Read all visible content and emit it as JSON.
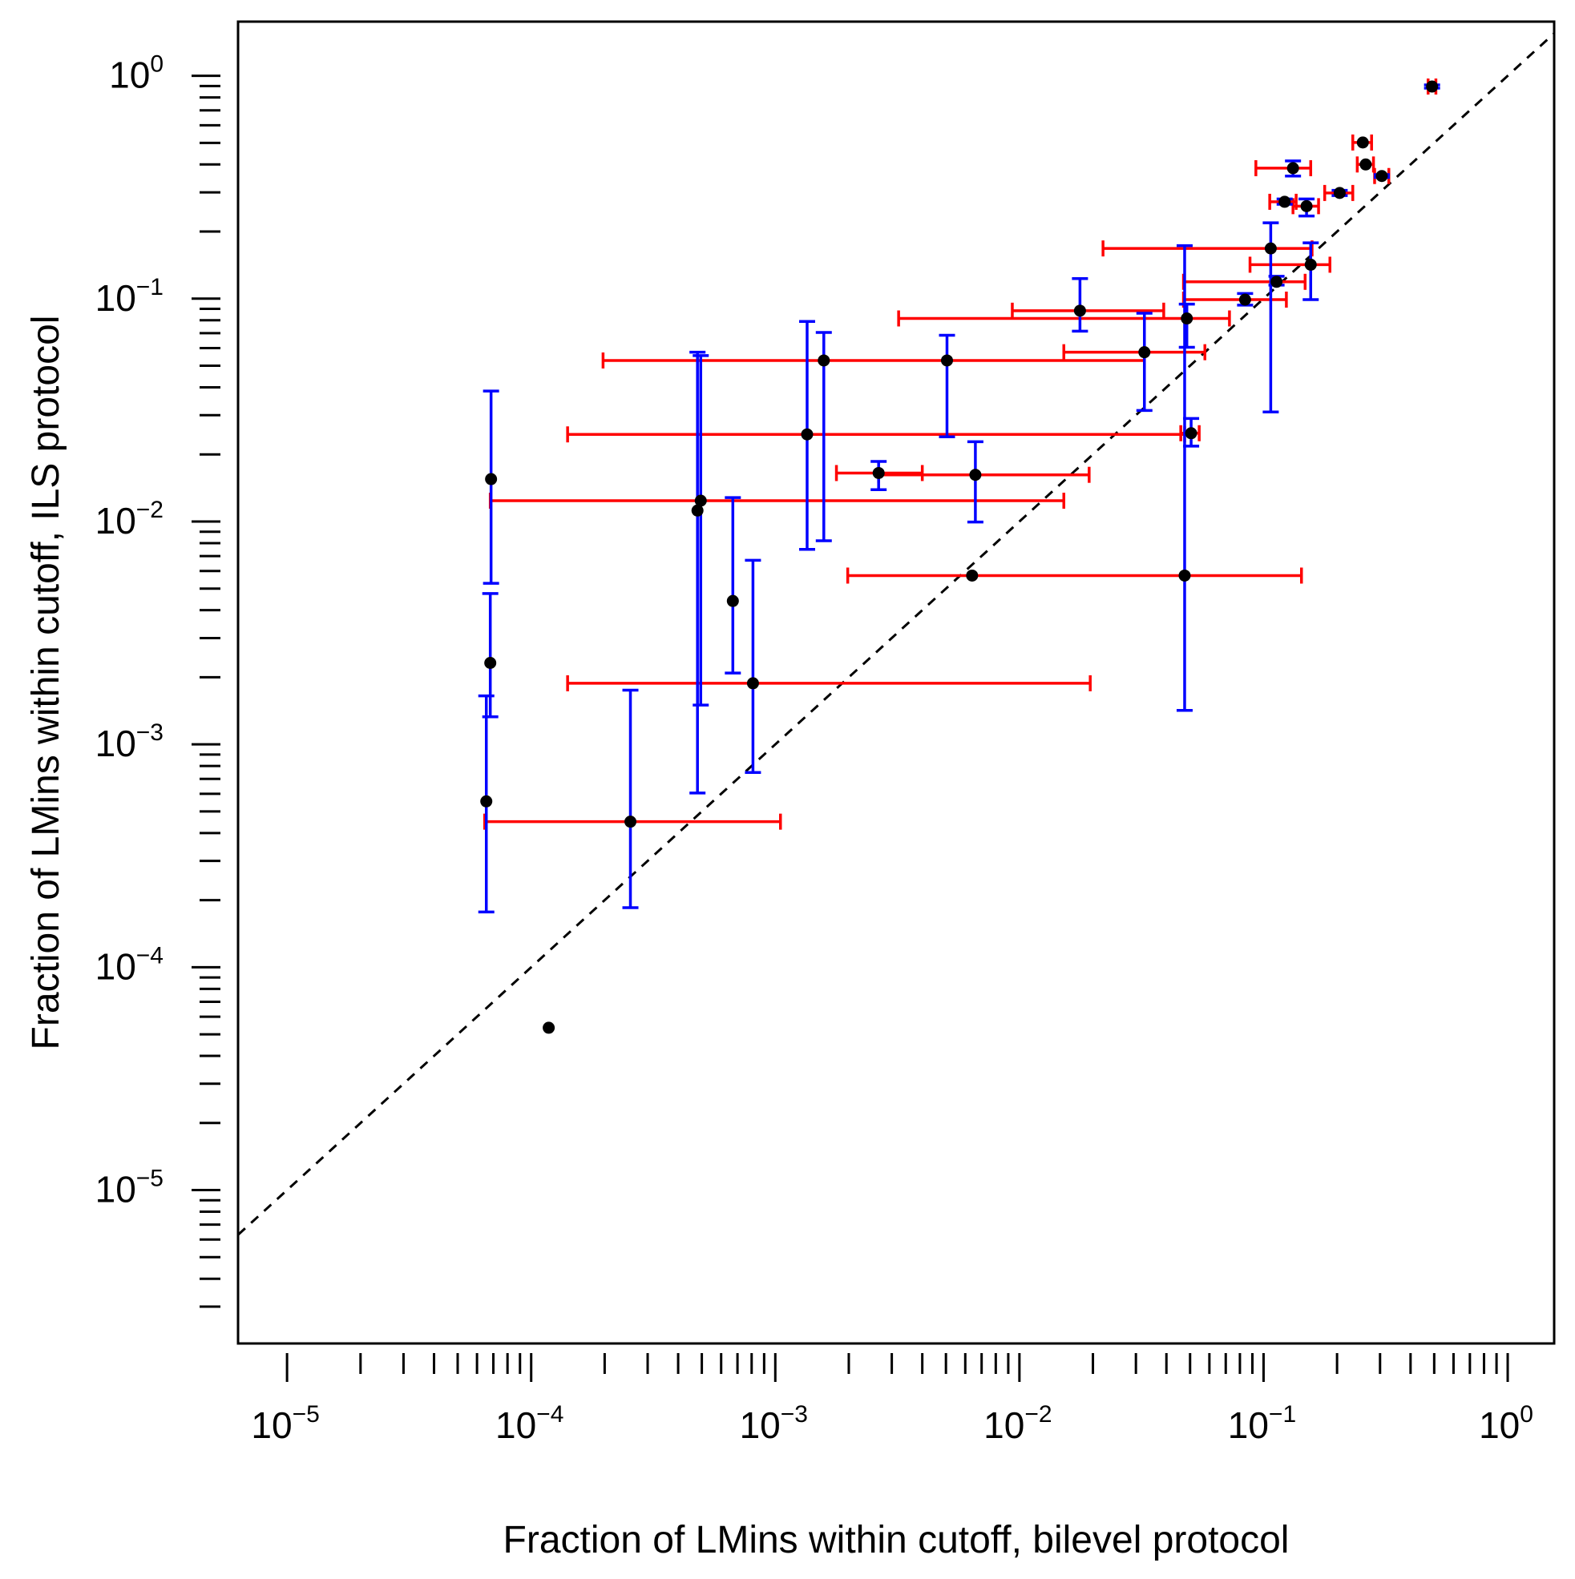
{
  "chart_data": {
    "type": "scatter",
    "title": "",
    "xlabel": "Fraction of LMins within cutoff, bilevel protocol",
    "ylabel": "Fraction of LMins within cutoff, ILS protocol",
    "x_scale": "log",
    "y_scale": "log",
    "xlim": [
      6.3e-06,
      1.55
    ],
    "ylim": [
      2.05e-06,
      1.75
    ],
    "x_ticks": [
      {
        "exp": -5,
        "base": "10",
        "sup": "−5"
      },
      {
        "exp": -4,
        "base": "10",
        "sup": "−4"
      },
      {
        "exp": -3,
        "base": "10",
        "sup": "−3"
      },
      {
        "exp": -2,
        "base": "10",
        "sup": "−2"
      },
      {
        "exp": -1,
        "base": "10",
        "sup": "−1"
      },
      {
        "exp": 0,
        "base": "10",
        "sup": "0"
      }
    ],
    "y_ticks": [
      {
        "exp": -5,
        "base": "10",
        "sup": "−5"
      },
      {
        "exp": -4,
        "base": "10",
        "sup": "−4"
      },
      {
        "exp": -3,
        "base": "10",
        "sup": "−3"
      },
      {
        "exp": -2,
        "base": "10",
        "sup": "−2"
      },
      {
        "exp": -1,
        "base": "10",
        "sup": "−1"
      },
      {
        "exp": 0,
        "base": "10",
        "sup": "0"
      }
    ],
    "reference_line": {
      "style": "dashed",
      "label": "y = x",
      "color": "#000000"
    },
    "colors": {
      "point": "#000000",
      "x_error": "#ff0000",
      "y_error": "#0000ff"
    },
    "points": [
      {
        "x": 0.000118,
        "y": 5.35e-05
      },
      {
        "x": 0.000255,
        "y": 0.00045,
        "xerr": [
          6.45e-05,
          0.00105
        ],
        "yerr": [
          0.000185,
          0.00175
        ]
      },
      {
        "x": 6.55e-05,
        "y": 0.000555,
        "yerr": [
          0.000177,
          0.00165
        ]
      },
      {
        "x": 6.8e-05,
        "y": 0.00232,
        "yerr": [
          0.00133,
          0.00475
        ]
      },
      {
        "x": 6.85e-05,
        "y": 0.0155,
        "yerr": [
          0.00528,
          0.0385
        ]
      },
      {
        "x": 0.00048,
        "y": 0.0112,
        "yerr": [
          0.000605,
          0.0575
        ]
      },
      {
        "x": 0.000495,
        "y": 0.0124,
        "xerr": [
          6.8e-05,
          0.0152
        ],
        "yerr": [
          0.0015,
          0.0555
        ]
      },
      {
        "x": 0.00067,
        "y": 0.0044,
        "yerr": [
          0.00209,
          0.0128
        ]
      },
      {
        "x": 0.00081,
        "y": 0.00188,
        "xerr": [
          0.000141,
          0.0195
        ],
        "yerr": [
          0.000748,
          0.0067
        ]
      },
      {
        "x": 0.00135,
        "y": 0.0246,
        "xerr": [
          0.000141,
          0.0475
        ],
        "yerr": [
          0.0075,
          0.079
        ]
      },
      {
        "x": 0.00158,
        "y": 0.0528,
        "xerr": [
          0.000197,
          0.0325
        ],
        "yerr": [
          0.0082,
          0.0705
        ]
      },
      {
        "x": 0.00265,
        "y": 0.0165,
        "xerr": [
          0.00178,
          0.004
        ],
        "yerr": [
          0.0139,
          0.0186
        ]
      },
      {
        "x": 0.00505,
        "y": 0.0528,
        "yerr": [
          0.024,
          0.0685
        ]
      },
      {
        "x": 0.0066,
        "y": 0.0162,
        "xerr": [
          0.00265,
          0.0193
        ],
        "yerr": [
          0.00995,
          0.0228
        ]
      },
      {
        "x": 0.0064,
        "y": 0.00572,
        "xerr": [
          0.00198,
          0.143
        ]
      },
      {
        "x": 0.0177,
        "y": 0.0883,
        "xerr": [
          0.00935,
          0.039
        ],
        "yerr": [
          0.0715,
          0.123
        ]
      },
      {
        "x": 0.0325,
        "y": 0.0575,
        "xerr": [
          0.0152,
          0.0575
        ],
        "yerr": [
          0.0315,
          0.086
        ]
      },
      {
        "x": 0.0485,
        "y": 0.0815,
        "xerr": [
          0.0032,
          0.0725
        ],
        "yerr": [
          0.0605,
          0.0945
        ]
      },
      {
        "x": 0.0475,
        "y": 0.00572,
        "yerr": [
          0.00142,
          0.173
        ]
      },
      {
        "x": 0.0505,
        "y": 0.0249,
        "xerr": [
          0.0458,
          0.0545
        ],
        "yerr": [
          0.0218,
          0.029
        ]
      },
      {
        "x": 0.084,
        "y": 0.099,
        "xerr": [
          0.047,
          0.124
        ],
        "yerr": [
          0.0935,
          0.1055
        ]
      },
      {
        "x": 0.107,
        "y": 0.168,
        "xerr": [
          0.022,
          0.158
        ],
        "yerr": [
          0.031,
          0.219
        ]
      },
      {
        "x": 0.113,
        "y": 0.119,
        "xerr": [
          0.047,
          0.148
        ],
        "yerr": [
          0.115,
          0.126
        ]
      },
      {
        "x": 0.156,
        "y": 0.142,
        "xerr": [
          0.088,
          0.187
        ],
        "yerr": [
          0.099,
          0.178
        ]
      },
      {
        "x": 0.122,
        "y": 0.272,
        "xerr": [
          0.106,
          0.136
        ],
        "yerr": [
          0.265,
          0.28
        ]
      },
      {
        "x": 0.15,
        "y": 0.26,
        "xerr": [
          0.132,
          0.168
        ],
        "yerr": [
          0.235,
          0.28
        ]
      },
      {
        "x": 0.132,
        "y": 0.385,
        "xerr": [
          0.093,
          0.156
        ],
        "yerr": [
          0.355,
          0.415
        ]
      },
      {
        "x": 0.205,
        "y": 0.298,
        "xerr": [
          0.178,
          0.232
        ],
        "yerr": [
          0.29,
          0.306
        ]
      },
      {
        "x": 0.255,
        "y": 0.502,
        "xerr": [
          0.232,
          0.277
        ]
      },
      {
        "x": 0.262,
        "y": 0.4,
        "xerr": [
          0.242,
          0.282
        ]
      },
      {
        "x": 0.305,
        "y": 0.355,
        "xerr": [
          0.285,
          0.326
        ],
        "yerr": [
          0.35,
          0.36
        ]
      },
      {
        "x": 0.49,
        "y": 0.895,
        "xerr": [
          0.472,
          0.508
        ],
        "yerr": [
          0.88,
          0.91
        ]
      }
    ]
  }
}
